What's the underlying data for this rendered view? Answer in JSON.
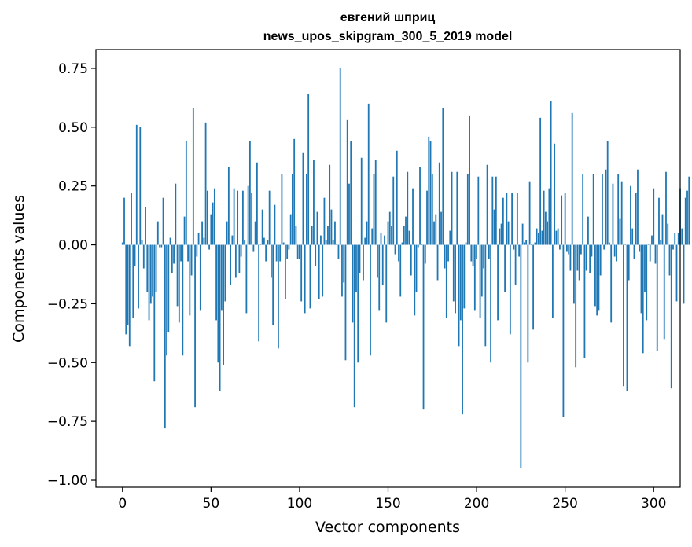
{
  "chart_data": {
    "type": "bar",
    "title": "евгений шприц",
    "subtitle": "news_upos_skipgram_300_5_2019 model",
    "xlabel": "Vector components",
    "ylabel": "Components values",
    "xlim": [
      -15,
      315
    ],
    "ylim": [
      -1.03,
      0.83
    ],
    "xticks": [
      0,
      50,
      100,
      150,
      200,
      250,
      300
    ],
    "yticks": [
      -1.0,
      -0.75,
      -0.5,
      -0.25,
      0.0,
      0.25,
      0.5,
      0.75
    ],
    "ytick_labels": [
      "−1.00",
      "−0.75",
      "−0.50",
      "−0.25",
      "0.00",
      "0.25",
      "0.50",
      "0.75"
    ],
    "bar_color": "#1f77b4",
    "grid": false,
    "values": [
      0.01,
      0.2,
      -0.38,
      -0.34,
      -0.43,
      0.22,
      -0.31,
      -0.09,
      0.51,
      -0.27,
      0.5,
      0.02,
      -0.1,
      0.16,
      -0.2,
      -0.32,
      -0.25,
      -0.22,
      -0.58,
      -0.2,
      0.1,
      -0.01,
      -0.01,
      0.2,
      -0.78,
      -0.47,
      -0.37,
      0.03,
      -0.12,
      -0.08,
      0.26,
      -0.26,
      -0.33,
      -0.07,
      -0.47,
      0.12,
      0.44,
      -0.07,
      -0.3,
      -0.13,
      0.58,
      -0.69,
      -0.05,
      0.05,
      -0.28,
      0.1,
      0.03,
      0.52,
      0.23,
      -0.02,
      0.13,
      0.18,
      0.24,
      -0.32,
      -0.5,
      -0.62,
      -0.28,
      -0.51,
      -0.24,
      0.1,
      0.33,
      -0.17,
      0.04,
      0.24,
      -0.14,
      0.23,
      -0.12,
      -0.05,
      0.23,
      0.02,
      -0.29,
      0.25,
      0.44,
      0.22,
      -0.03,
      0.1,
      0.35,
      -0.41,
      0.0,
      0.15,
      0.03,
      -0.07,
      0.02,
      0.23,
      -0.14,
      -0.34,
      0.17,
      -0.07,
      -0.44,
      -0.07,
      0.3,
      0.01,
      -0.23,
      -0.06,
      -0.02,
      0.13,
      0.3,
      0.45,
      0.08,
      -0.06,
      -0.06,
      -0.24,
      0.39,
      -0.29,
      0.3,
      0.64,
      -0.27,
      0.08,
      0.36,
      -0.09,
      0.14,
      -0.23,
      0.04,
      -0.22,
      0.2,
      0.02,
      0.08,
      0.34,
      0.15,
      0.02,
      0.1,
      0.0,
      -0.06,
      0.75,
      -0.22,
      -0.16,
      -0.49,
      0.53,
      0.26,
      0.44,
      -0.33,
      -0.69,
      -0.2,
      -0.5,
      -0.12,
      0.37,
      -0.15,
      0.03,
      0.1,
      0.6,
      -0.47,
      0.07,
      0.3,
      0.36,
      -0.14,
      -0.28,
      0.05,
      -0.17,
      0.04,
      -0.33,
      0.1,
      0.14,
      0.08,
      0.29,
      -0.04,
      0.4,
      -0.07,
      -0.22,
      0.01,
      0.08,
      0.12,
      0.31,
      0.06,
      -0.13,
      0.24,
      -0.3,
      -0.2,
      -0.01,
      0.33,
      0.0,
      -0.7,
      -0.08,
      0.23,
      0.46,
      0.44,
      0.3,
      0.1,
      0.13,
      -0.15,
      0.35,
      0.14,
      0.58,
      -0.1,
      -0.31,
      -0.07,
      0.06,
      0.31,
      -0.24,
      -0.29,
      0.31,
      -0.43,
      -0.32,
      -0.72,
      -0.27,
      0.01,
      0.3,
      0.55,
      -0.07,
      -0.09,
      -0.28,
      -0.06,
      0.29,
      -0.31,
      -0.22,
      -0.1,
      -0.43,
      0.34,
      -0.06,
      -0.5,
      0.29,
      0.15,
      0.29,
      -0.32,
      0.07,
      0.09,
      0.2,
      -0.2,
      0.22,
      0.1,
      -0.38,
      0.22,
      -0.02,
      -0.17,
      0.22,
      -0.05,
      -0.95,
      0.09,
      0.01,
      0.02,
      -0.5,
      0.27,
      0.0,
      -0.36,
      0.01,
      0.07,
      0.05,
      0.54,
      0.06,
      0.23,
      0.14,
      0.1,
      0.24,
      0.61,
      -0.31,
      0.43,
      0.06,
      0.07,
      -0.02,
      0.21,
      -0.73,
      0.22,
      -0.03,
      -0.04,
      -0.11,
      0.56,
      -0.25,
      -0.52,
      -0.11,
      -0.15,
      -0.04,
      0.3,
      -0.48,
      -0.11,
      0.12,
      -0.12,
      -0.05,
      0.3,
      -0.26,
      -0.3,
      -0.28,
      -0.13,
      0.3,
      -0.02,
      0.32,
      0.44,
      0.01,
      -0.33,
      0.26,
      -0.05,
      -0.07,
      0.3,
      0.11,
      0.27,
      -0.6,
      0.0,
      -0.62,
      -0.15,
      0.25,
      0.07,
      -0.06,
      0.22,
      0.32,
      -0.03,
      -0.29,
      -0.46,
      -0.2,
      -0.32,
      0.0,
      -0.07,
      0.04,
      0.24,
      -0.08,
      -0.45,
      0.2,
      0.02,
      0.13,
      -0.4,
      0.31,
      0.09,
      -0.13,
      -0.61,
      -0.02,
      0.05,
      -0.24,
      0.05,
      0.24,
      0.07,
      -0.25,
      0.2,
      0.23,
      0.29
    ]
  }
}
